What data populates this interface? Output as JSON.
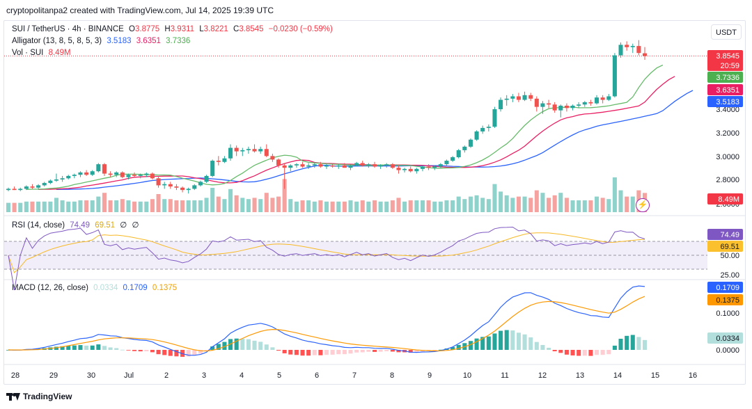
{
  "header": {
    "author_line": "cryptopolitanpa2 created with TradingView.com, Jul 14, 2025 19:39 UTC"
  },
  "main_pane": {
    "symbol": "SUI / TetherUS · 4h · BINANCE",
    "ohlc": {
      "o_label": "O",
      "o": "3.8775",
      "h_label": "H",
      "h": "3.9311",
      "l_label": "L",
      "l": "3.8221",
      "c_label": "C",
      "c": "3.8545",
      "change": "−0.0230 (−0.59%)"
    },
    "alligator_label": "Alligator (13, 8, 5, 8, 5, 3)",
    "alligator_values": [
      "3.5183",
      "3.6351",
      "3.7336"
    ],
    "vol_label": "Vol · SUI",
    "vol_value": "8.49M",
    "currency_button": "USDT",
    "price_ticks": [
      "3.4000",
      "3.2000",
      "3.0000",
      "2.8000",
      "2.6000"
    ],
    "price_tags": {
      "last": "3.8545",
      "countdown": "20:59",
      "lips": "3.7336",
      "teeth": "3.6351",
      "jaw": "3.5183",
      "volume": "8.49M"
    }
  },
  "rsi_pane": {
    "label": "RSI (14, close)",
    "values": [
      "74.49",
      "69.51",
      "∅",
      "∅"
    ],
    "ticks": [
      "50.00",
      "25.00"
    ],
    "tags": [
      "74.49",
      "69.51"
    ]
  },
  "macd_pane": {
    "label": "MACD (12, 26, close)",
    "values": [
      "0.0334",
      "0.1709",
      "0.1375"
    ],
    "ticks": [
      "0.1000",
      "0.0000"
    ],
    "tags": [
      "0.1709",
      "0.1375",
      "0.0334"
    ]
  },
  "time_axis": [
    "28",
    "29",
    "30",
    "Jul",
    "2",
    "3",
    "4",
    "5",
    "6",
    "7",
    "8",
    "9",
    "10",
    "11",
    "12",
    "13",
    "14",
    "15",
    "16"
  ],
  "footer": {
    "brand": "TradingView"
  },
  "colors": {
    "up": "#26a69a",
    "down": "#ef5350",
    "jaw": "#2962ff",
    "teeth": "#e91e63",
    "lips": "#66bb6a",
    "rsi": "#7e57c2",
    "rsi_ma": "#f7b924",
    "macd": "#2962ff",
    "signal": "#ff9800",
    "vol_up": "#8fd2cb",
    "vol_down": "#f5a3a1"
  },
  "chart_data": {
    "type": "candlestick",
    "interval": "4h",
    "x_range": [
      "Jun 28",
      "Jul 16"
    ],
    "ylim": [
      2.6,
      4.05
    ],
    "candles": [
      [
        2.71,
        2.73,
        2.7,
        2.72
      ],
      [
        2.72,
        2.74,
        2.71,
        2.71
      ],
      [
        2.71,
        2.73,
        2.7,
        2.72
      ],
      [
        2.72,
        2.75,
        2.71,
        2.74
      ],
      [
        2.74,
        2.76,
        2.72,
        2.73
      ],
      [
        2.73,
        2.76,
        2.72,
        2.75
      ],
      [
        2.75,
        2.78,
        2.74,
        2.77
      ],
      [
        2.77,
        2.8,
        2.76,
        2.79
      ],
      [
        2.79,
        2.85,
        2.78,
        2.8
      ],
      [
        2.8,
        2.83,
        2.78,
        2.81
      ],
      [
        2.81,
        2.84,
        2.8,
        2.83
      ],
      [
        2.83,
        2.85,
        2.81,
        2.84
      ],
      [
        2.84,
        2.87,
        2.82,
        2.86
      ],
      [
        2.86,
        2.88,
        2.83,
        2.84
      ],
      [
        2.84,
        2.88,
        2.83,
        2.87
      ],
      [
        2.87,
        2.94,
        2.86,
        2.93
      ],
      [
        2.93,
        2.94,
        2.83,
        2.85
      ],
      [
        2.85,
        2.87,
        2.82,
        2.84
      ],
      [
        2.84,
        2.87,
        2.82,
        2.86
      ],
      [
        2.86,
        2.87,
        2.81,
        2.82
      ],
      [
        2.82,
        2.85,
        2.8,
        2.84
      ],
      [
        2.84,
        2.86,
        2.82,
        2.83
      ],
      [
        2.83,
        2.85,
        2.81,
        2.84
      ],
      [
        2.84,
        2.86,
        2.82,
        2.85
      ],
      [
        2.85,
        2.86,
        2.8,
        2.81
      ],
      [
        2.81,
        2.83,
        2.73,
        2.75
      ],
      [
        2.75,
        2.78,
        2.72,
        2.76
      ],
      [
        2.76,
        2.78,
        2.72,
        2.74
      ],
      [
        2.74,
        2.76,
        2.71,
        2.73
      ],
      [
        2.73,
        2.74,
        2.69,
        2.71
      ],
      [
        2.71,
        2.73,
        2.68,
        2.72
      ],
      [
        2.72,
        2.76,
        2.71,
        2.75
      ],
      [
        2.75,
        2.79,
        2.74,
        2.78
      ],
      [
        2.78,
        2.84,
        2.77,
        2.83
      ],
      [
        2.83,
        2.97,
        2.82,
        2.96
      ],
      [
        2.96,
        3.0,
        2.92,
        2.95
      ],
      [
        2.95,
        3.0,
        2.94,
        2.98
      ],
      [
        2.98,
        3.1,
        2.96,
        3.07
      ],
      [
        3.07,
        3.09,
        3.0,
        3.04
      ],
      [
        3.04,
        3.07,
        3.0,
        3.05
      ],
      [
        3.05,
        3.08,
        3.02,
        3.06
      ],
      [
        3.06,
        3.1,
        3.03,
        3.04
      ],
      [
        3.04,
        3.08,
        3.02,
        3.06
      ],
      [
        3.06,
        3.1,
        2.99,
        3.0
      ],
      [
        3.0,
        3.02,
        2.95,
        2.97
      ],
      [
        2.97,
        2.98,
        2.9,
        2.92
      ],
      [
        2.92,
        2.94,
        2.72,
        2.9
      ],
      [
        2.9,
        2.93,
        2.87,
        2.92
      ],
      [
        2.92,
        2.94,
        2.9,
        2.93
      ],
      [
        2.93,
        2.95,
        2.9,
        2.91
      ],
      [
        2.91,
        2.94,
        2.89,
        2.92
      ],
      [
        2.92,
        2.94,
        2.9,
        2.93
      ],
      [
        2.93,
        2.95,
        2.9,
        2.91
      ],
      [
        2.91,
        2.93,
        2.89,
        2.92
      ],
      [
        2.92,
        2.94,
        2.9,
        2.91
      ],
      [
        2.91,
        2.93,
        2.89,
        2.92
      ],
      [
        2.92,
        2.94,
        2.9,
        2.9
      ],
      [
        2.9,
        2.93,
        2.88,
        2.92
      ],
      [
        2.92,
        2.95,
        2.91,
        2.94
      ],
      [
        2.94,
        2.96,
        2.91,
        2.92
      ],
      [
        2.92,
        2.94,
        2.9,
        2.93
      ],
      [
        2.93,
        2.95,
        2.9,
        2.91
      ],
      [
        2.91,
        2.93,
        2.89,
        2.92
      ],
      [
        2.92,
        2.94,
        2.9,
        2.93
      ],
      [
        2.93,
        2.94,
        2.89,
        2.9
      ],
      [
        2.9,
        2.92,
        2.85,
        2.88
      ],
      [
        2.88,
        2.9,
        2.86,
        2.89
      ],
      [
        2.89,
        2.91,
        2.86,
        2.87
      ],
      [
        2.87,
        2.9,
        2.85,
        2.89
      ],
      [
        2.89,
        2.92,
        2.87,
        2.91
      ],
      [
        2.91,
        2.93,
        2.88,
        2.9
      ],
      [
        2.9,
        2.92,
        2.88,
        2.91
      ],
      [
        2.91,
        2.94,
        2.9,
        2.93
      ],
      [
        2.93,
        2.97,
        2.92,
        2.96
      ],
      [
        2.96,
        3.0,
        2.95,
        2.99
      ],
      [
        2.99,
        3.06,
        2.98,
        3.05
      ],
      [
        3.05,
        3.09,
        3.03,
        3.08
      ],
      [
        3.08,
        3.15,
        3.07,
        3.14
      ],
      [
        3.14,
        3.22,
        3.13,
        3.21
      ],
      [
        3.21,
        3.26,
        3.19,
        3.24
      ],
      [
        3.24,
        3.27,
        3.21,
        3.25
      ],
      [
        3.25,
        3.42,
        3.24,
        3.4
      ],
      [
        3.4,
        3.5,
        3.38,
        3.48
      ],
      [
        3.48,
        3.52,
        3.43,
        3.49
      ],
      [
        3.49,
        3.53,
        3.46,
        3.51
      ],
      [
        3.51,
        3.54,
        3.46,
        3.48
      ],
      [
        3.48,
        3.55,
        3.47,
        3.52
      ],
      [
        3.52,
        3.54,
        3.47,
        3.49
      ],
      [
        3.49,
        3.51,
        3.38,
        3.42
      ],
      [
        3.42,
        3.47,
        3.36,
        3.45
      ],
      [
        3.45,
        3.48,
        3.41,
        3.44
      ],
      [
        3.44,
        3.46,
        3.37,
        3.39
      ],
      [
        3.39,
        3.44,
        3.33,
        3.43
      ],
      [
        3.43,
        3.45,
        3.38,
        3.41
      ],
      [
        3.41,
        3.44,
        3.39,
        3.43
      ],
      [
        3.43,
        3.46,
        3.41,
        3.44
      ],
      [
        3.44,
        3.47,
        3.42,
        3.46
      ],
      [
        3.46,
        3.48,
        3.43,
        3.45
      ],
      [
        3.45,
        3.52,
        3.44,
        3.5
      ],
      [
        3.5,
        3.52,
        3.45,
        3.48
      ],
      [
        3.48,
        3.53,
        3.47,
        3.51
      ],
      [
        3.51,
        3.88,
        3.5,
        3.86
      ],
      [
        3.86,
        3.97,
        3.84,
        3.95
      ],
      [
        3.95,
        3.98,
        3.9,
        3.93
      ],
      [
        3.93,
        3.96,
        3.88,
        3.94
      ],
      [
        3.94,
        3.99,
        3.86,
        3.88
      ],
      [
        3.8775,
        3.9311,
        3.8221,
        3.8545
      ]
    ],
    "volume_last": 8.49,
    "alligator_last": {
      "jaw": 3.5183,
      "teeth": 3.6351,
      "lips": 3.7336
    },
    "rsi_last": {
      "rsi": 74.49,
      "ma": 69.51
    },
    "rsi_lines": [
      70,
      50,
      30
    ],
    "macd_last": {
      "histogram": 0.0334,
      "macd": 0.1709,
      "signal": 0.1375
    }
  }
}
